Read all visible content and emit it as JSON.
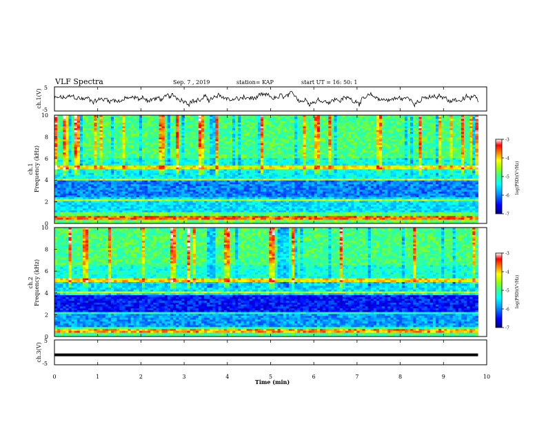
{
  "header": {
    "title": "VLF Spectra",
    "date": "Sep. 7 , 2019",
    "station": "station= KAP",
    "start": "start  UT =   16: 50: 1"
  },
  "colors": {
    "colormap": [
      "#000080",
      "#0000ff",
      "#00a0ff",
      "#00ffff",
      "#40ff80",
      "#a0ff00",
      "#ffff00",
      "#ff8000",
      "#ff0000",
      "#ffffff"
    ]
  },
  "chart_data": [
    {
      "type": "line",
      "panel": "ch1-waveform",
      "ylabel": "ch.1(V)",
      "ylim": [
        -5,
        5
      ],
      "yticks": [
        5,
        -5
      ],
      "xlim": [
        0,
        10
      ],
      "x_end": 9.8,
      "series": [
        {
          "values_note_removed": true
        }
      ]
    },
    {
      "type": "heatmap",
      "panel": "ch1-spectrogram",
      "ylabel": "ch.1\nFrequency (kHz)",
      "ylabel_lines": [
        "ch.1",
        "Frequency  (kHz)"
      ],
      "ylim": [
        0,
        10
      ],
      "yticks": [
        0,
        2,
        4,
        6,
        8,
        10
      ],
      "xlim": [
        0,
        10
      ],
      "x_end": 9.8,
      "colorbar": {
        "label": "log(PSD)(V²/Hz)",
        "range": [
          -7,
          -3
        ],
        "ticks": [
          "-3",
          "-4",
          "-5",
          "-6",
          "-7"
        ]
      }
    },
    {
      "type": "heatmap",
      "panel": "ch2-spectrogram",
      "ylabel_lines": [
        "ch.2",
        "Frequency  (kHz)"
      ],
      "ylim": [
        0,
        10
      ],
      "yticks": [
        0,
        2,
        4,
        6,
        8,
        10
      ],
      "xlim": [
        0,
        10
      ],
      "x_end": 9.8,
      "colorbar": {
        "label": "log(PSD)(V²/Hz)",
        "range": [
          -7,
          -3
        ],
        "ticks": [
          "-3",
          "-4",
          "-5",
          "-6",
          "-7"
        ]
      }
    },
    {
      "type": "line",
      "panel": "ch3-waveform",
      "ylabel": "ch.3(V)",
      "ylim": [
        -5,
        5
      ],
      "yticks": [
        5,
        -5
      ],
      "xlim": [
        0,
        10
      ],
      "x_end": 9.8,
      "series": [
        {
          "values": [
            -1,
            -1
          ]
        }
      ]
    }
  ],
  "xaxis": {
    "label": "Time  (min)",
    "ticks": [
      "0",
      "1",
      "2",
      "3",
      "4",
      "5",
      "6",
      "7",
      "8",
      "9",
      "10"
    ]
  }
}
